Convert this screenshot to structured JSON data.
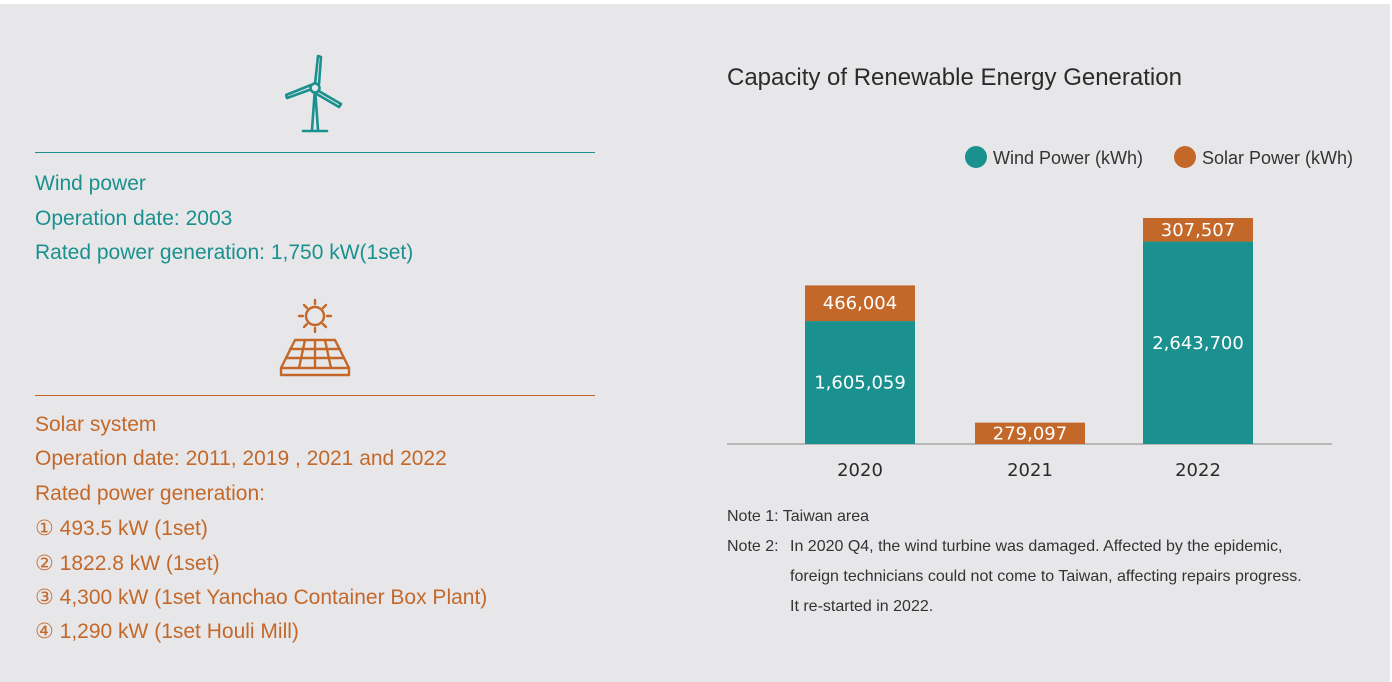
{
  "colors": {
    "wind": "#1a918f",
    "solar": "#c4682a",
    "axis": "#9a9a9a"
  },
  "wind_section": {
    "icon": "wind-turbine-icon",
    "title": "Wind power",
    "operation_date": "Operation date: 2003",
    "rated_power": "Rated power generation: 1,750 kW(1set)"
  },
  "solar_section": {
    "icon": "solar-panel-icon",
    "title": "Solar system",
    "operation_date": "Operation date: 2011, 2019 , 2021 and 2022",
    "rated_power_label": "Rated power generation:",
    "items": [
      "① 493.5 kW (1set)",
      "② 1822.8 kW (1set)",
      "③ 4,300 kW (1set Yanchao Container Box Plant)",
      "④ 1,290 kW (1set Houli Mill)"
    ]
  },
  "chart_data": {
    "type": "bar",
    "stacked": true,
    "title": "Capacity of Renewable Energy Generation",
    "categories": [
      "2020",
      "2021",
      "2022"
    ],
    "series": [
      {
        "name": "Wind Power (kWh)",
        "values": [
          1605059,
          0,
          2643700
        ],
        "labels": [
          "1,605,059",
          "",
          "2,643,700"
        ]
      },
      {
        "name": "Solar Power (kWh)",
        "values": [
          466004,
          279097,
          307507
        ],
        "labels": [
          "466,004",
          "279,097",
          "307,507"
        ]
      }
    ],
    "legend_position": "top-right",
    "grid": false
  },
  "notes": {
    "note1": "Note 1: Taiwan area",
    "note2_prefix": "Note 2: ",
    "note2_lines": [
      "In 2020 Q4, the wind turbine was damaged. Affected by the epidemic,",
      "foreign technicians could not come to Taiwan, affecting repairs progress.",
      "It re-started in 2022."
    ]
  }
}
